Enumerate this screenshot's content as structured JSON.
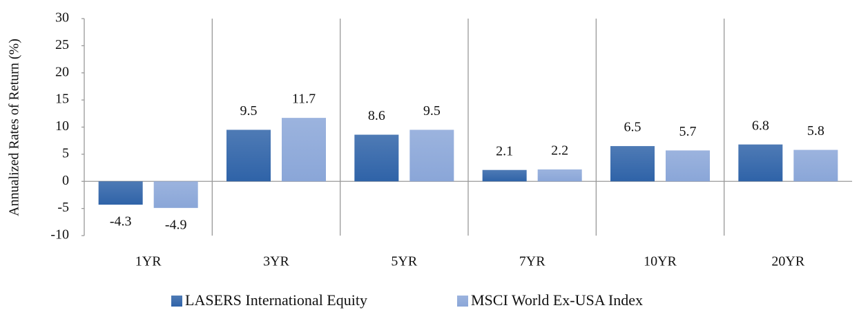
{
  "chart_data": {
    "type": "bar",
    "y_label": "Annualized Rates of Return (%)",
    "categories": [
      "1YR",
      "3YR",
      "5YR",
      "7YR",
      "10YR",
      "20YR"
    ],
    "series": [
      {
        "name": "LASERS International Equity",
        "color": "#2f63a8",
        "values": [
          -4.3,
          9.5,
          8.6,
          2.1,
          6.5,
          6.8
        ]
      },
      {
        "name": "MSCI World Ex-USA Index",
        "color": "#8aa6d8",
        "values": [
          -4.9,
          11.7,
          9.5,
          2.2,
          5.7,
          5.8
        ]
      }
    ],
    "ylim": [
      -10,
      30
    ],
    "yticks": [
      -10,
      -5,
      0,
      5,
      10,
      15,
      20,
      25,
      30
    ],
    "grid": false,
    "legend": "bottom"
  }
}
